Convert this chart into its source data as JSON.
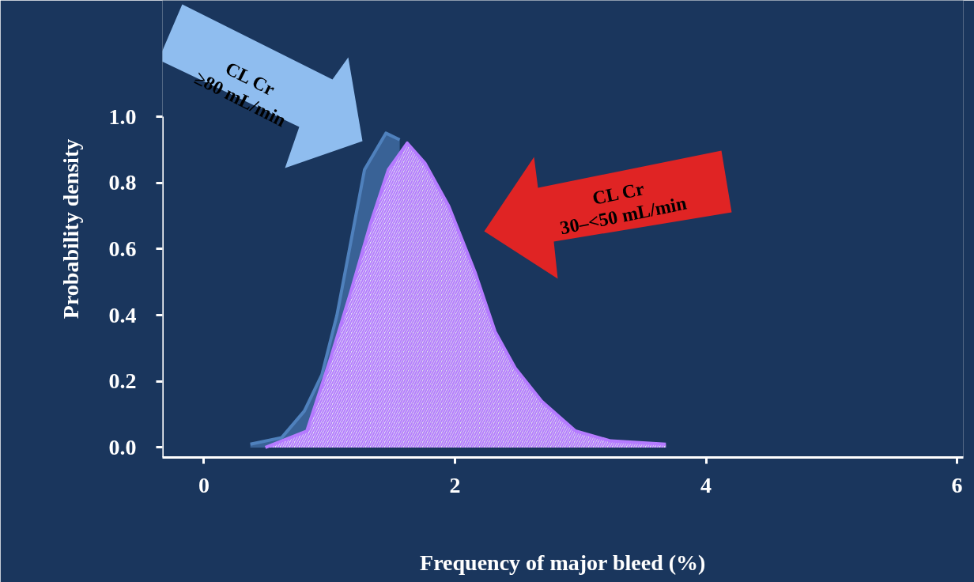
{
  "chart_data": {
    "type": "area",
    "xlabel": "Frequency of major bleed (%)",
    "ylabel": "Probability density",
    "xlim": [
      -0.33,
      6.05
    ],
    "ylim": [
      -0.03,
      1.0
    ],
    "xticks": [
      0,
      2,
      4,
      6
    ],
    "yticks": [
      {
        "value": 0,
        "label": "0.0"
      },
      {
        "value": 0.2,
        "label": "0.2"
      },
      {
        "value": 0.4,
        "label": "0.4"
      },
      {
        "value": 0.6,
        "label": "0.6"
      },
      {
        "value": 0.8,
        "label": "0.8"
      },
      {
        "value": 1.0,
        "label": "1.0"
      }
    ],
    "grid": false,
    "annotations": [
      "CL Cr\n≥80 mL/min",
      "CL Cr\n30–<50 mL/min"
    ],
    "series": [
      {
        "color": "#4f81bd",
        "x": [
          0.37,
          0.62,
          0.8,
          0.94,
          1.06,
          1.17,
          1.28,
          1.45,
          1.56
        ],
        "values": [
          0.01,
          0.03,
          0.11,
          0.22,
          0.4,
          0.62,
          0.84,
          0.95,
          0.93
        ]
      },
      {
        "color": "#b57bff",
        "x": [
          0.49,
          0.82,
          1.01,
          1.17,
          1.33,
          1.47,
          1.62,
          1.76,
          1.95,
          2.16,
          2.32,
          2.48,
          2.69,
          2.96,
          3.24,
          3.68
        ],
        "values": [
          0.0,
          0.05,
          0.27,
          0.47,
          0.68,
          0.84,
          0.92,
          0.86,
          0.73,
          0.53,
          0.35,
          0.24,
          0.14,
          0.05,
          0.02,
          0.01
        ]
      }
    ]
  }
}
